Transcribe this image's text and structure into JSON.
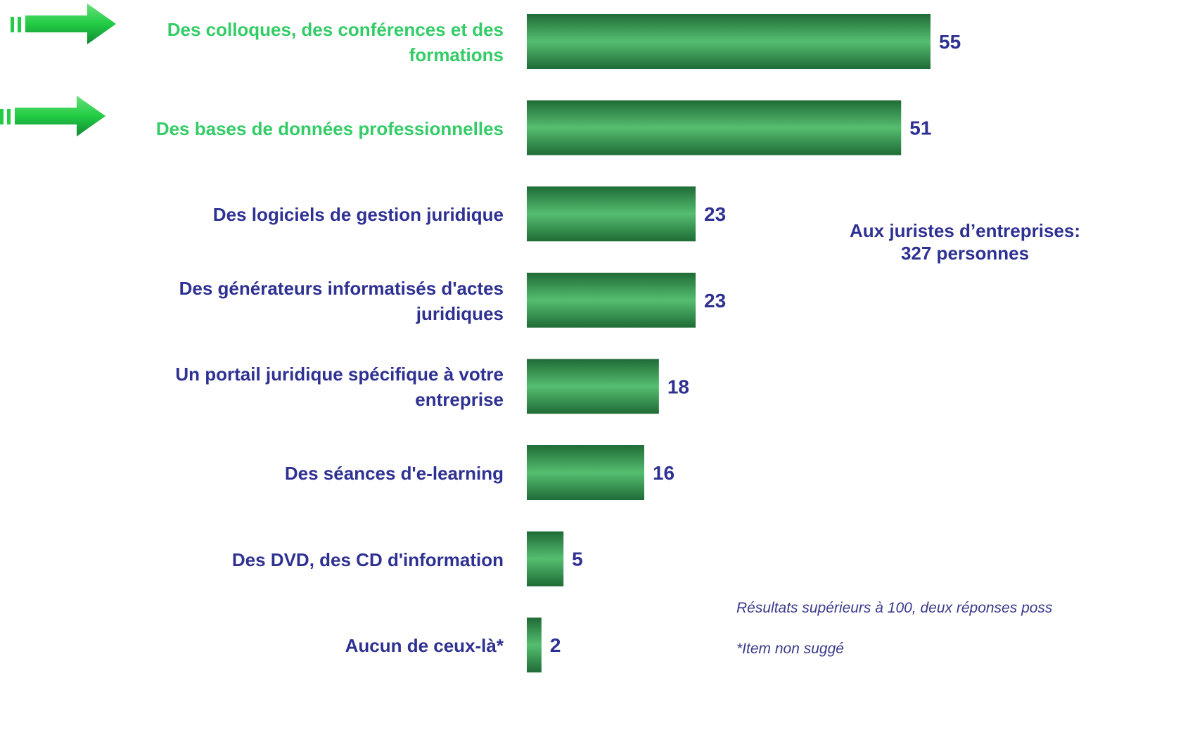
{
  "chart_data": {
    "type": "barh",
    "categories": [
      "Des colloques, des conférences et des\nformations",
      "Des bases de données professionnelles",
      "Des logiciels de gestion juridique",
      "Des générateurs informatisés d'actes\njuridiques",
      "Un portail juridique spécifique à votre\nentreprise",
      "Des séances d'e-learning",
      "Des DVD, des CD d'information",
      "Aucun de ceux-là*"
    ],
    "values": [
      55,
      51,
      23,
      23,
      18,
      16,
      5,
      2
    ],
    "color": "#3aa85a",
    "label_colors": [
      "#33cc66",
      "#33cc66",
      "#2e3192",
      "#2e3192",
      "#2e3192",
      "#2e3192",
      "#2e3192",
      "#2e3192"
    ],
    "value_label_color": "#2e3192",
    "annotations": [
      "Aux juristes d’entreprises:",
      "327 personnes"
    ],
    "notes": [
      "Résultats supérieurs à 100, deux réponses poss",
      "*Item non suggé"
    ]
  }
}
